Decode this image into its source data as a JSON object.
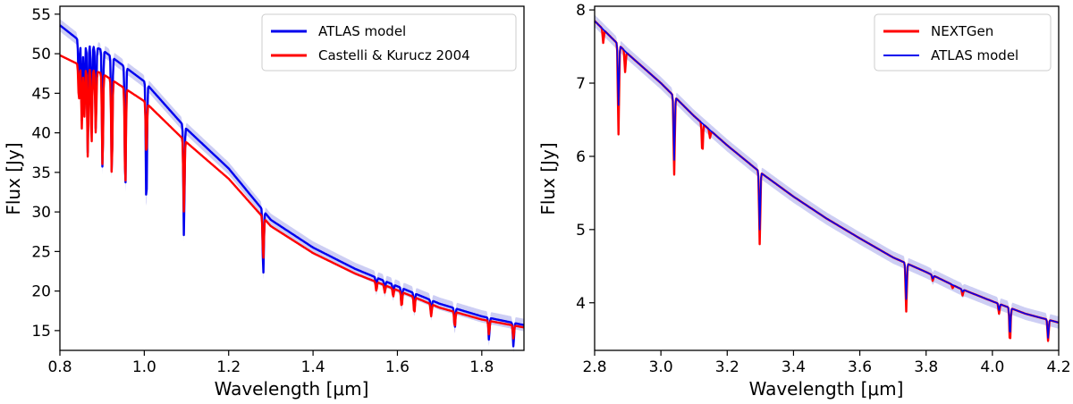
{
  "chart_data": [
    {
      "type": "line",
      "title": "",
      "xlabel": "Wavelength [μm]",
      "ylabel": "Flux [Jy]",
      "xlim": [
        0.8,
        1.9
      ],
      "ylim": [
        12.5,
        56
      ],
      "xticks": [
        0.8,
        1.0,
        1.2,
        1.4,
        1.6,
        1.8
      ],
      "xtick_labels": [
        "0.8",
        "1.0",
        "1.2",
        "1.4",
        "1.6",
        "1.8"
      ],
      "yticks": [
        15,
        20,
        25,
        30,
        35,
        40,
        45,
        50,
        55
      ],
      "ytick_labels": [
        "15",
        "20",
        "25",
        "30",
        "35",
        "40",
        "45",
        "50",
        "55"
      ],
      "legend_position": "top-right",
      "series": [
        {
          "name": "ATLAS model",
          "color": "#0000ee",
          "band_color": "#c4c6f2",
          "continuum": [
            [
              0.8,
              53.6
            ],
            [
              0.85,
              51.5
            ],
            [
              0.9,
              50.5
            ],
            [
              1.0,
              46.5
            ],
            [
              1.1,
              40.5
            ],
            [
              1.2,
              35.5
            ],
            [
              1.3,
              29.0
            ],
            [
              1.4,
              25.5
            ],
            [
              1.5,
              22.8
            ],
            [
              1.6,
              20.6
            ],
            [
              1.7,
              18.4
            ],
            [
              1.8,
              16.8
            ],
            [
              1.9,
              15.7
            ]
          ],
          "absorption_lines": [
            [
              0.845,
              45.0
            ],
            [
              0.852,
              41.5
            ],
            [
              0.858,
              43.0
            ],
            [
              0.866,
              37.5
            ],
            [
              0.875,
              39.5
            ],
            [
              0.885,
              40.5
            ],
            [
              0.901,
              35.0
            ],
            [
              0.923,
              34.5
            ],
            [
              0.955,
              32.5
            ],
            [
              1.005,
              30.2
            ],
            [
              1.094,
              27.0
            ],
            [
              1.282,
              22.0
            ],
            [
              1.55,
              20.2
            ],
            [
              1.57,
              20.0
            ],
            [
              1.59,
              19.5
            ],
            [
              1.61,
              18.2
            ],
            [
              1.64,
              17.5
            ],
            [
              1.68,
              17.0
            ],
            [
              1.736,
              15.3
            ],
            [
              1.817,
              13.8
            ],
            [
              1.875,
              13.0
            ]
          ]
        },
        {
          "name": "Castelli & Kurucz 2004",
          "color": "#ff0000",
          "band_color": "",
          "continuum": [
            [
              0.8,
              49.8
            ],
            [
              0.85,
              48.5
            ],
            [
              0.9,
              47.5
            ],
            [
              1.0,
              44.0
            ],
            [
              1.1,
              38.8
            ],
            [
              1.2,
              34.2
            ],
            [
              1.3,
              28.2
            ],
            [
              1.4,
              24.8
            ],
            [
              1.5,
              22.2
            ],
            [
              1.6,
              20.1
            ],
            [
              1.7,
              17.9
            ],
            [
              1.8,
              16.4
            ],
            [
              1.9,
              15.4
            ]
          ],
          "absorption_lines": [
            [
              0.845,
              44.0
            ],
            [
              0.852,
              40.5
            ],
            [
              0.858,
              42.0
            ],
            [
              0.866,
              37.0
            ],
            [
              0.875,
              38.5
            ],
            [
              0.885,
              40.0
            ],
            [
              0.901,
              35.5
            ],
            [
              0.923,
              34.5
            ],
            [
              0.955,
              33.0
            ],
            [
              1.005,
              37.0
            ],
            [
              1.094,
              30.0
            ],
            [
              1.282,
              24.0
            ],
            [
              1.55,
              20.0
            ],
            [
              1.57,
              19.8
            ],
            [
              1.59,
              19.3
            ],
            [
              1.61,
              18.0
            ],
            [
              1.64,
              17.2
            ],
            [
              1.68,
              16.8
            ],
            [
              1.736,
              15.5
            ],
            [
              1.817,
              14.5
            ],
            [
              1.875,
              14.0
            ]
          ]
        }
      ]
    },
    {
      "type": "line",
      "title": "",
      "xlabel": "Wavelength [μm]",
      "ylabel": "Flux [Jy]",
      "xlim": [
        2.8,
        4.2
      ],
      "ylim": [
        3.35,
        8.05
      ],
      "xticks": [
        2.8,
        3.0,
        3.2,
        3.4,
        3.6,
        3.8,
        4.0,
        4.2
      ],
      "xtick_labels": [
        "2.8",
        "3.0",
        "3.2",
        "3.4",
        "3.6",
        "3.8",
        "4.0",
        "4.2"
      ],
      "yticks": [
        4,
        5,
        6,
        7,
        8
      ],
      "ytick_labels": [
        "4",
        "5",
        "6",
        "7",
        "8"
      ],
      "legend_position": "top-right",
      "series": [
        {
          "name": "NEXTGen",
          "color": "#ff0000",
          "band_color": "",
          "continuum": [
            [
              2.8,
              7.85
            ],
            [
              2.9,
              7.4
            ],
            [
              3.0,
              7.0
            ],
            [
              3.1,
              6.55
            ],
            [
              3.2,
              6.15
            ],
            [
              3.3,
              5.78
            ],
            [
              3.4,
              5.45
            ],
            [
              3.5,
              5.15
            ],
            [
              3.6,
              4.88
            ],
            [
              3.7,
              4.62
            ],
            [
              3.8,
              4.42
            ],
            [
              3.9,
              4.2
            ],
            [
              4.0,
              4.02
            ],
            [
              4.1,
              3.85
            ],
            [
              4.2,
              3.73
            ]
          ],
          "absorption_lines": [
            [
              2.826,
              7.55
            ],
            [
              2.872,
              6.3
            ],
            [
              2.892,
              7.15
            ],
            [
              3.04,
              5.75
            ],
            [
              3.125,
              6.05
            ],
            [
              3.148,
              6.25
            ],
            [
              3.298,
              4.8
            ],
            [
              3.74,
              3.88
            ],
            [
              3.82,
              4.3
            ],
            [
              3.88,
              4.2
            ],
            [
              3.91,
              4.1
            ],
            [
              4.02,
              3.85
            ],
            [
              4.053,
              3.45
            ],
            [
              4.168,
              3.48
            ]
          ]
        },
        {
          "name": "ATLAS model",
          "color": "#0000ee",
          "band_color": "#c4c6f2",
          "continuum": [
            [
              2.8,
              7.85
            ],
            [
              2.9,
              7.4
            ],
            [
              3.0,
              7.0
            ],
            [
              3.1,
              6.55
            ],
            [
              3.2,
              6.15
            ],
            [
              3.3,
              5.78
            ],
            [
              3.4,
              5.45
            ],
            [
              3.5,
              5.15
            ],
            [
              3.6,
              4.88
            ],
            [
              3.7,
              4.62
            ],
            [
              3.8,
              4.42
            ],
            [
              3.9,
              4.2
            ],
            [
              4.0,
              4.02
            ],
            [
              4.1,
              3.85
            ],
            [
              4.2,
              3.73
            ]
          ],
          "absorption_lines": [
            [
              2.872,
              6.7
            ],
            [
              3.04,
              5.95
            ],
            [
              3.298,
              5.0
            ],
            [
              3.74,
              4.05
            ],
            [
              3.82,
              4.33
            ],
            [
              3.91,
              4.15
            ],
            [
              4.02,
              3.9
            ],
            [
              4.053,
              3.55
            ],
            [
              4.168,
              3.52
            ]
          ]
        }
      ]
    }
  ]
}
